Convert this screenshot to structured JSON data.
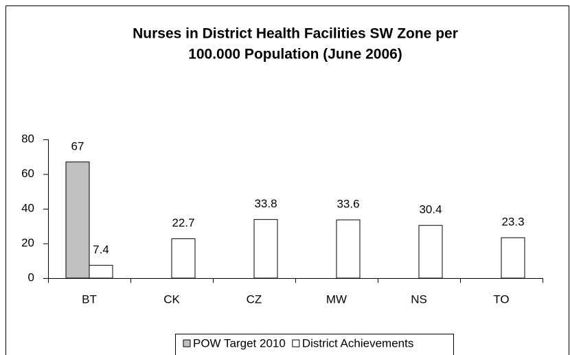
{
  "chart_data": {
    "type": "bar",
    "title": [
      "Nurses in District Health Facilities SW Zone per",
      "100.000 Population (June 2006)"
    ],
    "categories": [
      "BT",
      "CK",
      "CZ",
      "MW",
      "NS",
      "TO"
    ],
    "series": [
      {
        "name": "POW Target 2010",
        "color": "#c0c0c0",
        "values": [
          67,
          null,
          null,
          null,
          null,
          null
        ]
      },
      {
        "name": "District Achievements",
        "color": "#ffffff",
        "values": [
          7.4,
          22.7,
          33.8,
          33.6,
          30.4,
          23.3
        ]
      }
    ],
    "ylim": [
      0,
      80
    ],
    "yticks": [
      0,
      20,
      40,
      60,
      80
    ],
    "grid": false,
    "legend": "bottom"
  }
}
